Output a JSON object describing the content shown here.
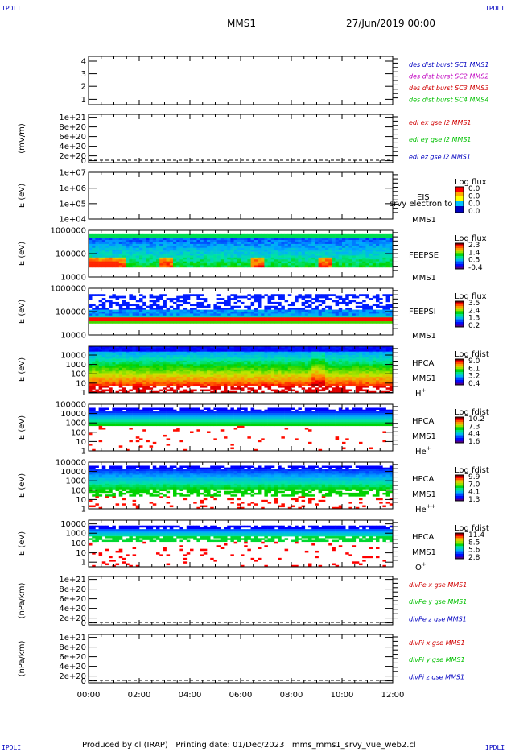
{
  "header": {
    "corner_tl": "IPDLI",
    "corner_tr": "IPDLI",
    "corner_bl": "IPDLI",
    "corner_br": "IPDLI",
    "title": "MMS1",
    "date": "27/Jun/2019 00:00"
  },
  "footer": {
    "produced": "Produced by cl (IRAP)",
    "printing": "Printing date: 01/Dec/2023",
    "file": "mms_mms1_srvy_vue_web2.cl"
  },
  "colors": {
    "blue": "#0000c0",
    "magenta": "#c000c0",
    "red": "#d00000",
    "green": "#00c000"
  },
  "chart_data": {
    "type": "heatmap",
    "x_ticks": [
      "00:00",
      "02:00",
      "04:00",
      "06:00",
      "08:00",
      "10:00",
      "12:00"
    ],
    "panels": [
      {
        "id": "dist",
        "y_ticks": [
          "4",
          "3",
          "2",
          "1"
        ],
        "legend": [
          {
            "text": "des dist burst SC1 MMS1",
            "color": "#0000c0"
          },
          {
            "text": "des dist burst SC2 MMS2",
            "color": "#c000c0"
          },
          {
            "text": "des dist burst SC3 MMS3",
            "color": "#d00000"
          },
          {
            "text": "des dist burst SC4 MMS4",
            "color": "#00c000"
          }
        ]
      },
      {
        "id": "edi",
        "ylabel": "(mV/m)",
        "y_ticks": [
          "1e+21",
          "8e+20",
          "6e+20",
          "4e+20",
          "2e+20",
          "0"
        ],
        "legend": [
          {
            "text": "edi ex gse l2 MMS1",
            "color": "#d00000"
          },
          {
            "text": "edi ey gse l2 MMS1",
            "color": "#00c000"
          },
          {
            "text": "edi ez gse l2 MMS1",
            "color": "#0000c0"
          }
        ]
      },
      {
        "id": "eis",
        "ylabel": "E (eV)",
        "y_ticks": [
          "1e+07",
          "1e+06",
          "1e+05",
          "1e+04"
        ],
        "instrument": [
          "EIS",
          "MMS1"
        ],
        "overlay": "srvy electron to",
        "cbar_title": "Log flux",
        "cbar_ticks": [
          "0.0",
          "0.0",
          "0.0",
          "0.0"
        ]
      },
      {
        "id": "feepse",
        "ylabel": "E (eV)",
        "y_ticks": [
          "1000000",
          "100000",
          "10000"
        ],
        "instrument": [
          "FEEPSE",
          "MMS1"
        ],
        "cbar_title": "Log flux",
        "cbar_ticks": [
          "2.3",
          "1.4",
          "0.5",
          "-0.4"
        ]
      },
      {
        "id": "feepsi",
        "ylabel": "E (eV)",
        "y_ticks": [
          "1000000",
          "100000",
          "10000"
        ],
        "instrument": [
          "FEEPSI",
          "MMS1"
        ],
        "cbar_title": "Log flux",
        "cbar_ticks": [
          "3.5",
          "2.4",
          "1.3",
          "0.2"
        ]
      },
      {
        "id": "hpca_h",
        "ylabel": "E (eV)",
        "y_ticks": [
          "10000",
          "1000",
          "100",
          "10",
          "1"
        ],
        "instrument": [
          "HPCA",
          "MMS1",
          "H",
          "+"
        ],
        "cbar_title": "Log fdist",
        "cbar_ticks": [
          "9.0",
          "6.1",
          "3.2",
          "0.4"
        ]
      },
      {
        "id": "hpca_he",
        "ylabel": "E (eV)",
        "y_ticks": [
          "100000",
          "10000",
          "1000",
          "100",
          "10",
          "1"
        ],
        "instrument": [
          "HPCA",
          "MMS1",
          "He",
          "+"
        ],
        "cbar_title": "Log fdist",
        "cbar_ticks": [
          "10.2",
          "7.3",
          "4.4",
          "1.6"
        ]
      },
      {
        "id": "hpca_hepp",
        "ylabel": "E (eV)",
        "y_ticks": [
          "100000",
          "10000",
          "1000",
          "100",
          "10",
          "1"
        ],
        "instrument": [
          "HPCA",
          "MMS1",
          "He",
          "++"
        ],
        "cbar_title": "Log fdist",
        "cbar_ticks": [
          "9.9",
          "7.0",
          "4.1",
          "1.3"
        ]
      },
      {
        "id": "hpca_o",
        "ylabel": "E (eV)",
        "y_ticks": [
          "10000",
          "1000",
          "100",
          "10",
          "1"
        ],
        "instrument": [
          "HPCA",
          "MMS1",
          "O",
          "+"
        ],
        "cbar_title": "Log fdist",
        "cbar_ticks": [
          "11.4",
          "8.5",
          "5.6",
          "2.8"
        ]
      },
      {
        "id": "divpe",
        "ylabel": "(nPa/km)",
        "y_ticks": [
          "1e+21",
          "8e+20",
          "6e+20",
          "4e+20",
          "2e+20",
          "0"
        ],
        "legend": [
          {
            "text": "divPe x gse MMS1",
            "color": "#d00000"
          },
          {
            "text": "divPe y gse MMS1",
            "color": "#00c000"
          },
          {
            "text": "divPe z gse MMS1",
            "color": "#0000c0"
          }
        ]
      },
      {
        "id": "divpi",
        "ylabel": "(nPa/km)",
        "y_ticks": [
          "1e+21",
          "8e+20",
          "6e+20",
          "4e+20",
          "2e+20",
          "0"
        ],
        "legend": [
          {
            "text": "divPi x gse MMS1",
            "color": "#d00000"
          },
          {
            "text": "divPi y gse MMS1",
            "color": "#00c000"
          },
          {
            "text": "divPi z gse MMS1",
            "color": "#0000c0"
          }
        ]
      }
    ]
  }
}
